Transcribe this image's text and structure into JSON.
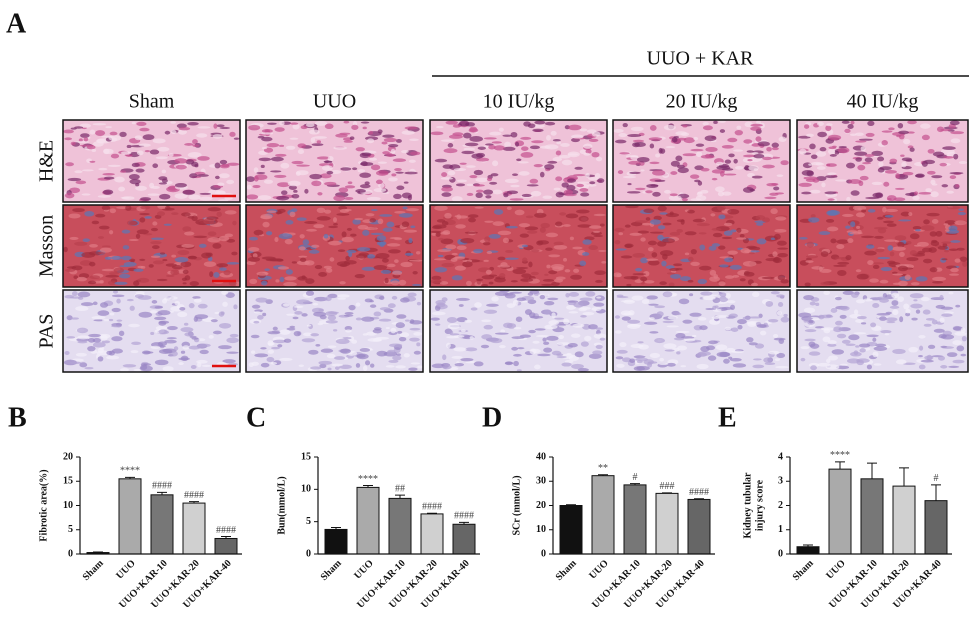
{
  "panel_a": {
    "letter": "A",
    "group_label": "UUO + KAR",
    "columns": [
      "Sham",
      "UUO",
      "10 IU/kg",
      "20 IU/kg",
      "40 IU/kg"
    ],
    "rows": [
      "H&E",
      "Masson",
      "PAS"
    ]
  },
  "chart_data": [
    {
      "panel": "B",
      "type": "bar",
      "ylabel": [
        "Fibrotic area(%)"
      ],
      "categories": [
        "Sham",
        "UUO",
        "UUO+KAR-10",
        "UUO+KAR-20",
        "UUO+KAR-40"
      ],
      "values": [
        0.3,
        15.5,
        12.2,
        10.5,
        3.2
      ],
      "errors": [
        0.1,
        0.3,
        0.5,
        0.3,
        0.4
      ],
      "annotations": [
        null,
        "****",
        "####",
        "####",
        "####"
      ],
      "colors": [
        "#111111",
        "#aaaaaa",
        "#777777",
        "#d0d0d0",
        "#666666"
      ],
      "ylim": [
        0,
        20
      ],
      "yticks": [
        0,
        5,
        10,
        15,
        20
      ]
    },
    {
      "panel": "C",
      "type": "bar",
      "ylabel": [
        "Bun(mmol/L)"
      ],
      "categories": [
        "Sham",
        "UUO",
        "UUO+KAR-10",
        "UUO+KAR-20",
        "UUO+KAR-40"
      ],
      "values": [
        3.8,
        10.3,
        8.6,
        6.2,
        4.6
      ],
      "errors": [
        0.3,
        0.3,
        0.5,
        0.1,
        0.3
      ],
      "annotations": [
        null,
        "****",
        "##",
        "####",
        "####"
      ],
      "colors": [
        "#111111",
        "#aaaaaa",
        "#777777",
        "#d0d0d0",
        "#666666"
      ],
      "ylim": [
        0,
        15
      ],
      "yticks": [
        0,
        5,
        10,
        15
      ]
    },
    {
      "panel": "D",
      "type": "bar",
      "ylabel": [
        "SCr (mmol/L)"
      ],
      "categories": [
        "Sham",
        "UUO",
        "UUO+KAR-10",
        "UUO+KAR-20",
        "UUO+KAR-40"
      ],
      "values": [
        20,
        32.3,
        28.5,
        25,
        22.5
      ],
      "errors": [
        0.3,
        0.4,
        0.5,
        0.2,
        0.3
      ],
      "annotations": [
        null,
        "**",
        "#",
        "###",
        "####"
      ],
      "colors": [
        "#111111",
        "#aaaaaa",
        "#777777",
        "#d0d0d0",
        "#666666"
      ],
      "ylim": [
        0,
        40
      ],
      "yticks": [
        0,
        10,
        20,
        30,
        40
      ]
    },
    {
      "panel": "E",
      "type": "bar",
      "ylabel": [
        "Kidney tubular",
        "injury score"
      ],
      "categories": [
        "Sham",
        "UUO",
        "UUO+KAR-10",
        "UUO+KAR-20",
        "UUO+KAR-40"
      ],
      "values": [
        0.3,
        3.5,
        3.1,
        2.8,
        2.2
      ],
      "errors": [
        0.07,
        0.3,
        0.65,
        0.75,
        0.65
      ],
      "annotations": [
        null,
        "****",
        null,
        null,
        "#"
      ],
      "colors": [
        "#111111",
        "#aaaaaa",
        "#777777",
        "#d0d0d0",
        "#666666"
      ],
      "ylim": [
        0,
        4
      ],
      "yticks": [
        0,
        1,
        2,
        3,
        4
      ]
    }
  ]
}
